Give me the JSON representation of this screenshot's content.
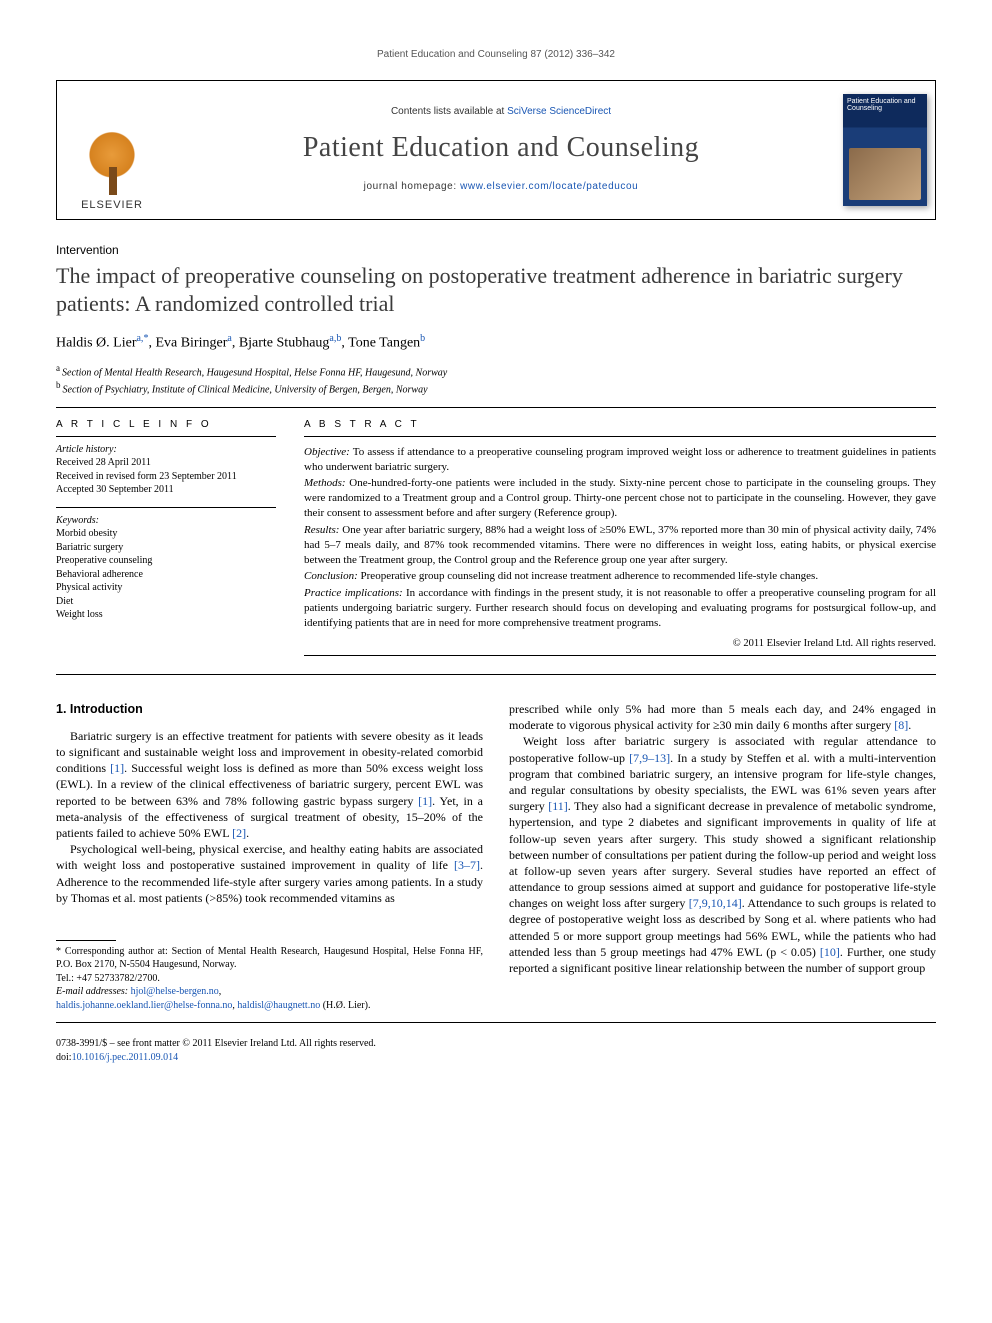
{
  "running_head": "Patient Education and Counseling 87 (2012) 336–342",
  "masthead": {
    "publisher": "ELSEVIER",
    "contents_prefix": "Contents lists available at ",
    "contents_link": "SciVerse ScienceDirect",
    "journal": "Patient Education and Counseling",
    "homepage_prefix": "journal homepage: ",
    "homepage_url": "www.elsevier.com/locate/pateducou",
    "cover_title": "Patient Education and Counseling"
  },
  "article": {
    "section": "Intervention",
    "title": "The impact of preoperative counseling on postoperative treatment adherence in bariatric surgery patients: A randomized controlled trial",
    "authors_html": "Haldis Ø. Lier",
    "a1_name": "Haldis Ø. Lier",
    "a1_aff": "a,",
    "a1_corr": "*",
    "a2_name": ", Eva Biringer",
    "a2_aff": "a",
    "a3_name": ", Bjarte Stubhaug",
    "a3_aff": "a,b",
    "a4_name": ", Tone Tangen",
    "a4_aff": "b",
    "affil_a": "Section of Mental Health Research, Haugesund Hospital, Helse Fonna HF, Haugesund, Norway",
    "affil_b": "Section of Psychiatry, Institute of Clinical Medicine, University of Bergen, Bergen, Norway"
  },
  "info": {
    "head": "A R T I C L E   I N F O",
    "history_label": "Article history:",
    "received": "Received 28 April 2011",
    "revised": "Received in revised form 23 September 2011",
    "accepted": "Accepted 30 September 2011",
    "keywords_label": "Keywords:",
    "kw1": "Morbid obesity",
    "kw2": "Bariatric surgery",
    "kw3": "Preoperative counseling",
    "kw4": "Behavioral adherence",
    "kw5": "Physical activity",
    "kw6": "Diet",
    "kw7": "Weight loss"
  },
  "abstract": {
    "head": "A B S T R A C T",
    "objective_label": "Objective:",
    "objective": " To assess if attendance to a preoperative counseling program improved weight loss or adherence to treatment guidelines in patients who underwent bariatric surgery.",
    "methods_label": "Methods:",
    "methods": " One-hundred-forty-one patients were included in the study. Sixty-nine percent chose to participate in the counseling groups. They were randomized to a Treatment group and a Control group. Thirty-one percent chose not to participate in the counseling. However, they gave their consent to assessment before and after surgery (Reference group).",
    "results_label": "Results:",
    "results": " One year after bariatric surgery, 88% had a weight loss of ≥50% EWL, 37% reported more than 30 min of physical activity daily, 74% had 5–7 meals daily, and 87% took recommended vitamins. There were no differences in weight loss, eating habits, or physical exercise between the Treatment group, the Control group and the Reference group one year after surgery.",
    "conclusion_label": "Conclusion:",
    "conclusion": " Preoperative group counseling did not increase treatment adherence to recommended life-style changes.",
    "practice_label": "Practice implications:",
    "practice": " In accordance with findings in the present study, it is not reasonable to offer a preoperative counseling program for all patients undergoing bariatric surgery. Further research should focus on developing and evaluating programs for postsurgical follow-up, and identifying patients that are in need for more comprehensive treatment programs.",
    "copyright": "© 2011 Elsevier Ireland Ltd. All rights reserved."
  },
  "body": {
    "h1": "1. Introduction",
    "p1a": "Bariatric surgery is an effective treatment for patients with severe obesity as it leads to significant and sustainable weight loss and improvement in obesity-related comorbid conditions ",
    "r1": "[1]",
    "p1b": ". Successful weight loss is defined as more than 50% excess weight loss (EWL). In a review of the clinical effectiveness of bariatric surgery, percent EWL was reported to be between 63% and 78% following gastric bypass surgery ",
    "r1b": "[1]",
    "p1c": ". Yet, in a meta-analysis of the effectiveness of surgical treatment of obesity, 15–20% of the patients failed to achieve 50% EWL ",
    "r2": "[2]",
    "p1d": ".",
    "p2a": "Psychological well-being, physical exercise, and healthy eating habits are associated with weight loss and postoperative sustained improvement in quality of life ",
    "r3": "[3–7]",
    "p2b": ". Adherence to the recommended life-style after surgery varies among patients. In a study by Thomas et al. most patients (>85%) took recommended vitamins as",
    "p3a": "prescribed while only 5% had more than 5 meals each day, and 24% engaged in moderate to vigorous physical activity for ≥30 min daily 6 months after surgery ",
    "r8": "[8]",
    "p3b": ".",
    "p4a": "Weight loss after bariatric surgery is associated with regular attendance to postoperative follow-up ",
    "r7913": "[7,9–13]",
    "p4b": ". In a study by Steffen et al. with a multi-intervention program that combined bariatric surgery, an intensive program for life-style changes, and regular consultations by obesity specialists, the EWL was 61% seven years after surgery ",
    "r11": "[11]",
    "p4c": ". They also had a significant decrease in prevalence of metabolic syndrome, hypertension, and type 2 diabetes and significant improvements in quality of life at follow-up seven years after surgery. This study showed a significant relationship between number of consultations per patient during the follow-up period and weight loss at follow-up seven years after surgery. Several studies have reported an effect of attendance to group sessions aimed at support and guidance for postoperative life-style changes on weight loss after surgery ",
    "r791014": "[7,9,10,14]",
    "p4d": ". Attendance to such groups is related to degree of postoperative weight loss as described by Song et al. where patients who had attended 5 or more support group meetings had 56% EWL, while the patients who had attended less than 5 group meetings had 47% EWL (p < 0.05) ",
    "r10": "[10]",
    "p4e": ". Further, one study reported a significant positive linear relationship between the number of support group"
  },
  "footnote": {
    "corr_label": "* Corresponding author at:",
    "corr_text": " Section of Mental Health Research, Haugesund Hospital, Helse Fonna HF, P.O. Box 2170, N-5504 Haugesund, Norway.",
    "tel": "Tel.: +47 52733782/2700.",
    "email_label": "E-mail addresses:",
    "email1": "hjol@helse-bergen.no",
    "email2": "haldis.johanne.oekland.lier@helse-fonna.no",
    "email3": "haldisl@haugnett.no",
    "email_tail": " (H.Ø. Lier)."
  },
  "footer": {
    "line1a": "0738-3991/$ – see front matter ",
    "line1b": "© 2011 Elsevier Ireland Ltd. All rights reserved.",
    "doi_label": "doi:",
    "doi": "10.1016/j.pec.2011.09.014"
  },
  "colors": {
    "link": "#1956b3",
    "text": "#000000",
    "headgrey": "#3a3a3a"
  }
}
